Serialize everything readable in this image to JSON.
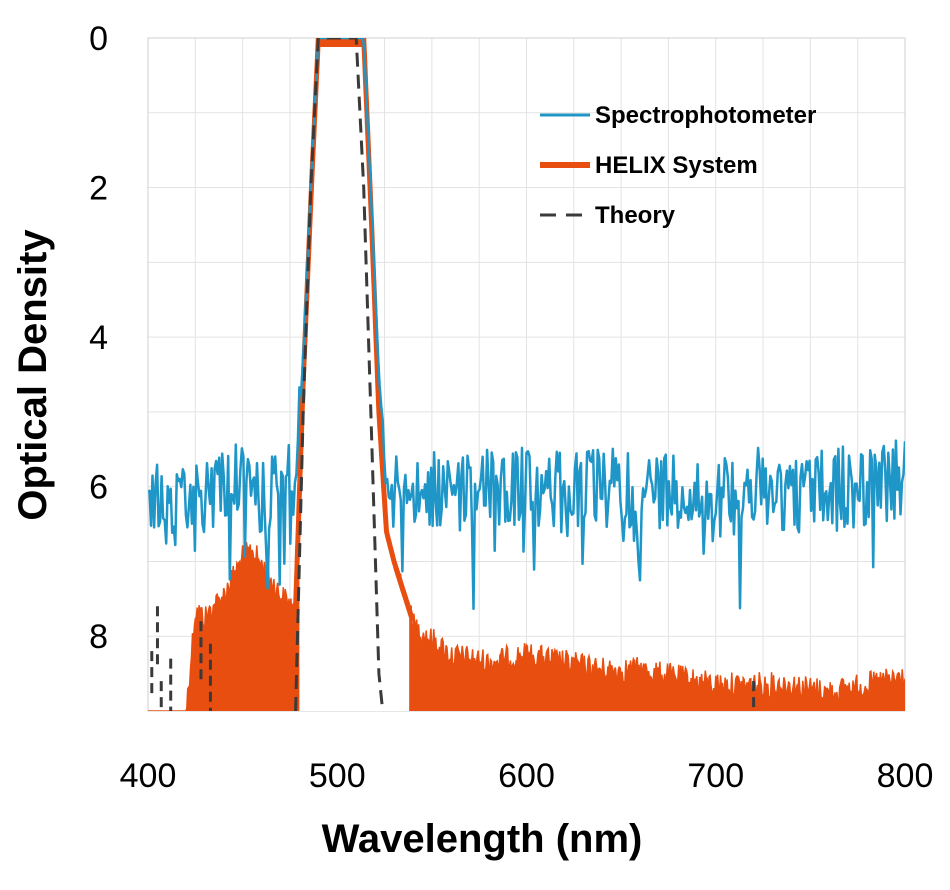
{
  "chart_data": {
    "type": "line",
    "title": "",
    "xlabel": "Wavelength (nm)",
    "ylabel": "Optical Density",
    "xlim": [
      400,
      800
    ],
    "ylim": [
      0,
      9
    ],
    "y_inverted": true,
    "x_ticks": [
      "400",
      "500",
      "600",
      "700",
      "800"
    ],
    "y_ticks": [
      "0",
      "2",
      "4",
      "6",
      "8"
    ],
    "grid": true,
    "legend_position": "top-right",
    "series": [
      {
        "name": "Spectrophotometer",
        "color": "#1f96c8",
        "style": "solid",
        "note": "noisy floor ~5.3-7.5 OD outside passband",
        "x": [
          400,
          410,
          420,
          430,
          440,
          450,
          460,
          470,
          478,
          482,
          486,
          490,
          495,
          500,
          505,
          510,
          514,
          518,
          522,
          526,
          530,
          540,
          560,
          580,
          600,
          620,
          640,
          660,
          680,
          700,
          720,
          740,
          760,
          780,
          800
        ],
        "y": [
          6.0,
          6.4,
          6.3,
          6.1,
          5.9,
          6.0,
          6.2,
          6.0,
          5.9,
          4.3,
          2.0,
          0.0,
          0.0,
          0.0,
          0.0,
          0.0,
          0.0,
          2.2,
          4.5,
          5.9,
          6.1,
          6.0,
          6.1,
          6.0,
          6.0,
          6.1,
          6.0,
          6.1,
          6.0,
          6.2,
          6.0,
          6.1,
          6.0,
          6.0,
          5.9
        ]
      },
      {
        "name": "HELIX System",
        "color": "#e84e0f",
        "style": "solid",
        "note": "dense noisy band, cut off at bottom beyond ~8.5-9 OD",
        "x": [
          400,
          420,
          425,
          430,
          440,
          450,
          455,
          460,
          470,
          478,
          482,
          486,
          490,
          495,
          500,
          505,
          510,
          514,
          518,
          522,
          526,
          530,
          540,
          560,
          580,
          600,
          620,
          640,
          660,
          680,
          700,
          720,
          740,
          760,
          780,
          800
        ],
        "y": [
          9.0,
          9.0,
          7.6,
          7.7,
          7.4,
          6.9,
          6.8,
          7.0,
          7.4,
          7.6,
          4.6,
          2.2,
          0.0,
          0.0,
          0.0,
          0.0,
          0.0,
          0.0,
          2.4,
          5.0,
          6.6,
          7.0,
          7.8,
          8.2,
          8.3,
          8.2,
          8.3,
          8.4,
          8.4,
          8.5,
          8.6,
          8.6,
          8.6,
          8.7,
          8.6,
          8.5
        ]
      },
      {
        "name": "Theory",
        "color": "#3a3a3a",
        "style": "dashed",
        "x": [
          478,
          482,
          486,
          490,
          495,
          500,
          505,
          510,
          514,
          518,
          522,
          524
        ],
        "y": [
          9.0,
          5.0,
          2.0,
          0.0,
          0.0,
          0.0,
          0.0,
          0.0,
          2.0,
          5.2,
          8.5,
          9.0
        ]
      }
    ]
  }
}
